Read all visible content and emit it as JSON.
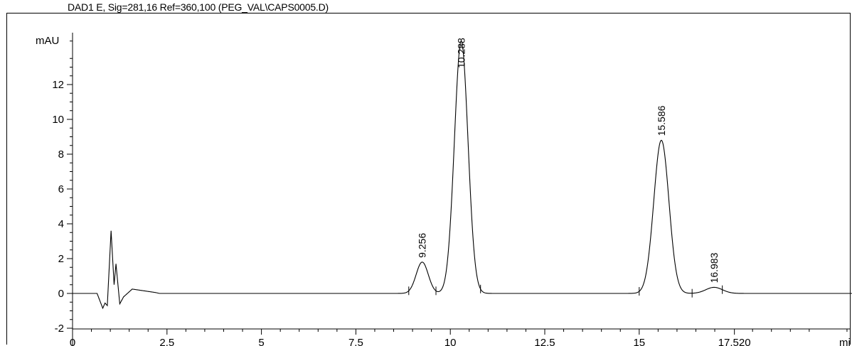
{
  "chart_data": {
    "type": "line",
    "title": "DAD1 E, Sig=281,16 Ref=360,100 (PEG_VAL\\CAPS0005.D)",
    "ylabel": "mAU",
    "xlabel": "mi",
    "xlim": [
      0,
      20.9
    ],
    "ylim": [
      -2,
      15
    ],
    "y_ticks": [
      "-2",
      "0",
      "2",
      "4",
      "6",
      "8",
      "10",
      "12"
    ],
    "x_ticks": [
      "0",
      "2.5",
      "5",
      "7.5",
      "10",
      "12.5",
      "15",
      "17.520"
    ],
    "peaks": [
      {
        "rt": 9.256,
        "label": "9.256",
        "height": 1.8
      },
      {
        "rt": 10.288,
        "label": "10.288",
        "height": 14.5
      },
      {
        "rt": 15.586,
        "label": "15.586",
        "height": 8.8
      },
      {
        "rt": 16.983,
        "label": "16.983",
        "height": 0.35
      }
    ],
    "baseline_noise": [
      {
        "x": 0.72,
        "y": -0.4
      },
      {
        "x": 0.8,
        "y": -0.85
      },
      {
        "x": 0.86,
        "y": -0.55
      },
      {
        "x": 0.92,
        "y": -0.7
      },
      {
        "x": 1.02,
        "y": 3.6
      },
      {
        "x": 1.1,
        "y": 0.5
      },
      {
        "x": 1.15,
        "y": 1.7
      },
      {
        "x": 1.25,
        "y": -0.6
      },
      {
        "x": 1.35,
        "y": -0.2
      },
      {
        "x": 1.58,
        "y": 0.25
      },
      {
        "x": 2.2,
        "y": 0.05
      }
    ],
    "grid": false,
    "color": "#000000"
  }
}
